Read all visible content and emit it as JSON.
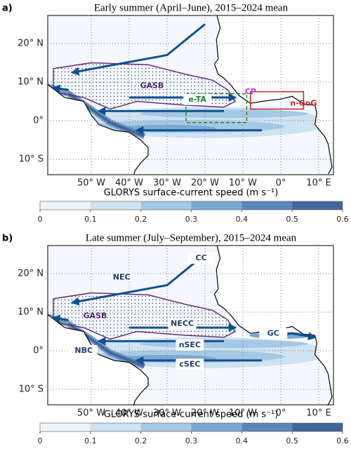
{
  "panels": [
    {
      "label": "a)",
      "title": "Early summer (April–June), 2015–2024 mean",
      "lat_labels": [
        "20° N",
        "10° N",
        "0°",
        "10° S"
      ],
      "lon_labels": [
        "50° W",
        "40° W",
        "30° W",
        "20° W",
        "10° W",
        "0°",
        "10° E"
      ],
      "regions": [
        "GASB",
        "e-TA",
        "CP",
        "n-GoG"
      ],
      "colorbar": {
        "label": "GLORYS surface-current speed (m s⁻¹)",
        "lim": [
          0,
          0.6
        ],
        "ticks": [
          0,
          0.1,
          0.2,
          0.3,
          0.4,
          0.5,
          0.6
        ],
        "colors": [
          "#eef4fb",
          "#cfe2f2",
          "#a5c8e4",
          "#7aa8d2",
          "#5a87b8",
          "#42679a"
        ]
      }
    },
    {
      "label": "b)",
      "title": "Late summer (July–September), 2015–2024 mean",
      "lat_labels": [
        "20° N",
        "10° N",
        "0°",
        "10° S"
      ],
      "lon_labels": [
        "50° W",
        "40° W",
        "30° W",
        "20° W",
        "10° W",
        "0°",
        "10° E"
      ],
      "regions": [
        "CC",
        "NEC",
        "GASB",
        "NECC",
        "GC",
        "NBC",
        "nSEC",
        "cSEC"
      ],
      "colorbar": {
        "label": "GLORYS surface-current speed (m s⁻¹)",
        "lim": [
          0,
          0.6
        ],
        "ticks": [
          0,
          0.1,
          0.2,
          0.3,
          0.4,
          0.5,
          0.6
        ],
        "colors": [
          "#eef4fb",
          "#cfe2f2",
          "#a5c8e4",
          "#7aa8d2",
          "#5a87b8",
          "#42679a"
        ]
      }
    }
  ]
}
